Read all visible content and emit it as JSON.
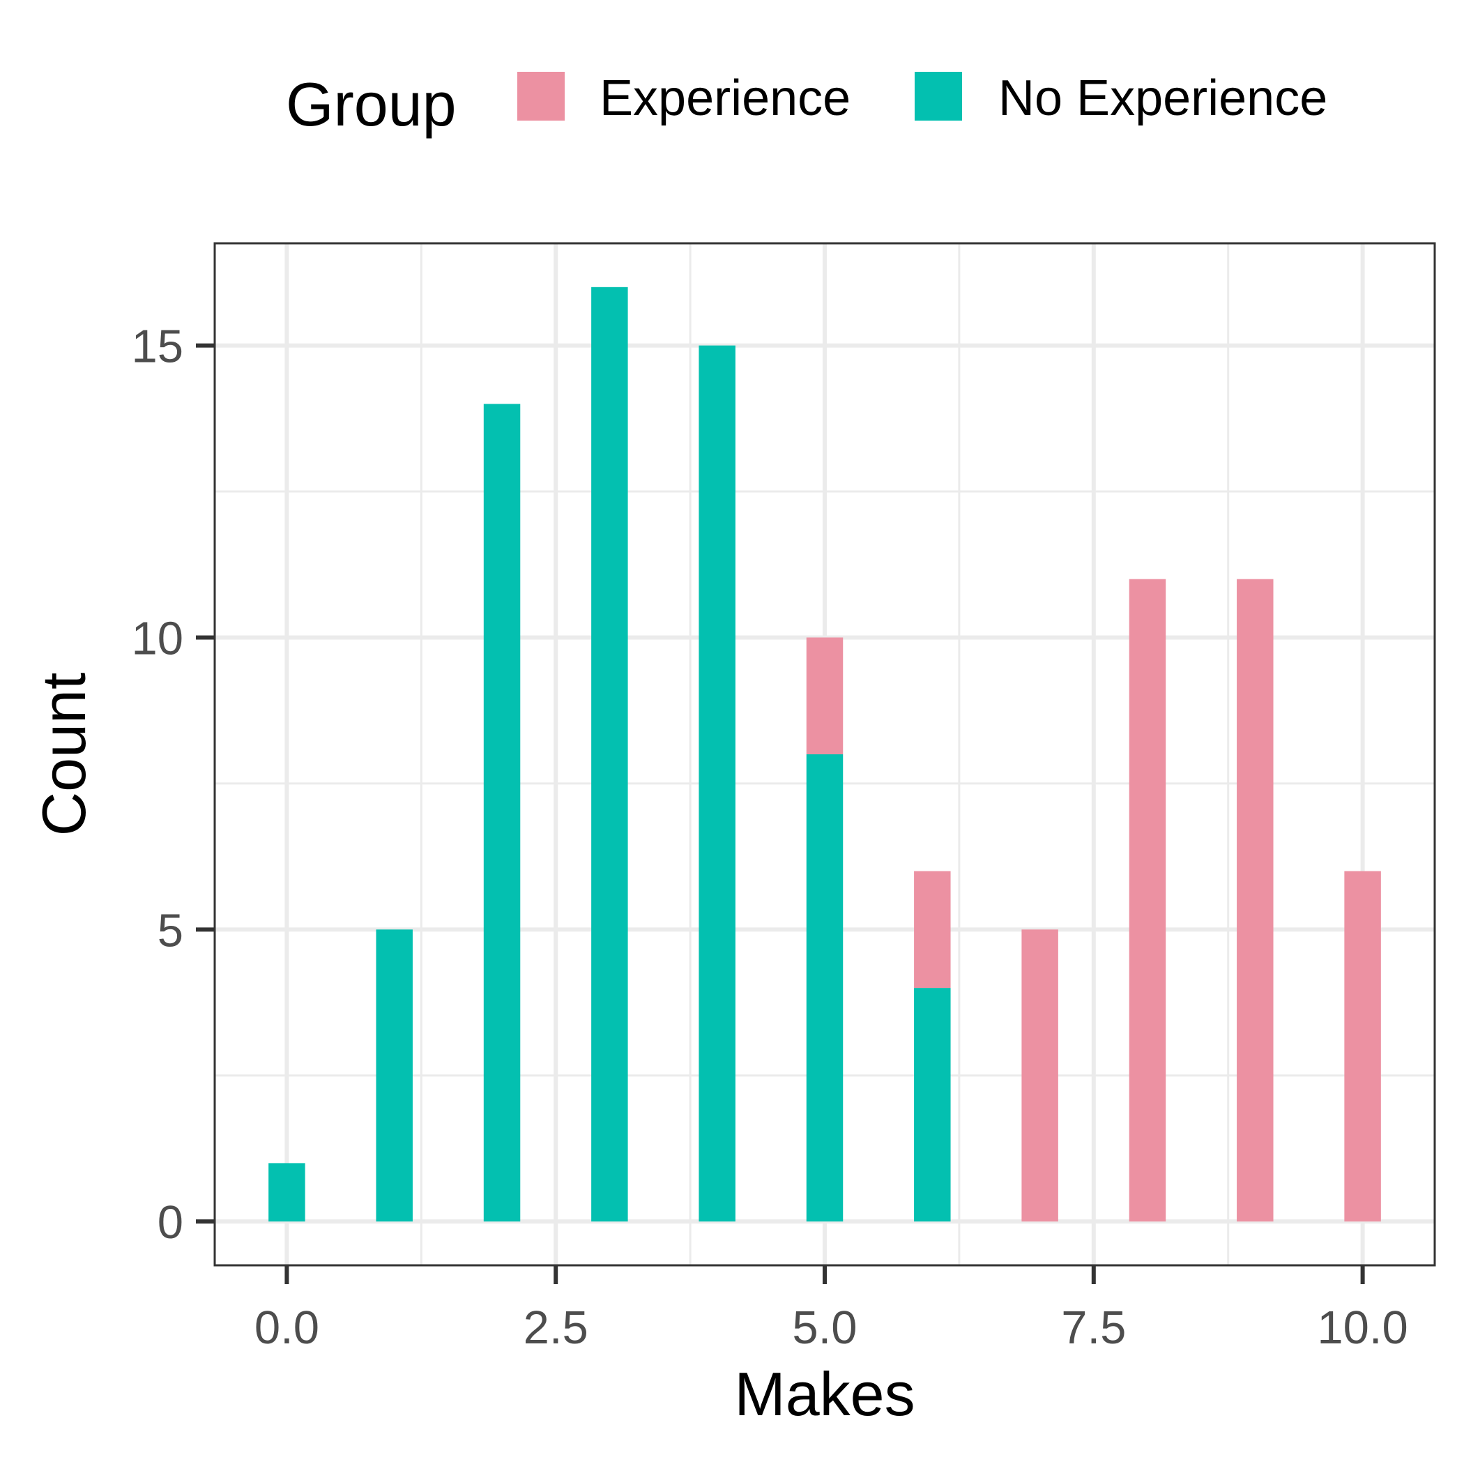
{
  "chart_data": {
    "type": "bar",
    "stacked": true,
    "xlabel": "Makes",
    "ylabel": "Count",
    "x": [
      0,
      1,
      2,
      3,
      4,
      5,
      6,
      7,
      8,
      9,
      10
    ],
    "series": [
      {
        "name": "Experience",
        "color": "#ec91a2",
        "values": [
          0,
          0,
          0,
          0,
          0,
          2,
          2,
          5,
          11,
          11,
          6
        ]
      },
      {
        "name": "No Experience",
        "color": "#03c0b0",
        "values": [
          1,
          5,
          14,
          16,
          15,
          8,
          4,
          0,
          0,
          0,
          0
        ]
      }
    ],
    "stack_order_bottom_to_top": [
      "No Experience",
      "Experience"
    ],
    "xlim": [
      -0.67,
      10.67
    ],
    "ylim": [
      -0.75,
      16.75
    ],
    "x_ticks": [
      0,
      2.5,
      5,
      7.5,
      10
    ],
    "x_tick_labels": [
      "0.0",
      "2.5",
      "5.0",
      "7.5",
      "10.0"
    ],
    "y_ticks": [
      0,
      5,
      10,
      15
    ],
    "y_tick_labels": [
      "0",
      "5",
      "10",
      "15"
    ],
    "grid": true,
    "legend": {
      "title": "Group",
      "position": "top",
      "entries": [
        "Experience",
        "No Experience"
      ]
    },
    "colors": {
      "panel_border": "#333333",
      "grid": "#ebebeb",
      "tick_label": "#4d4d4d"
    }
  }
}
